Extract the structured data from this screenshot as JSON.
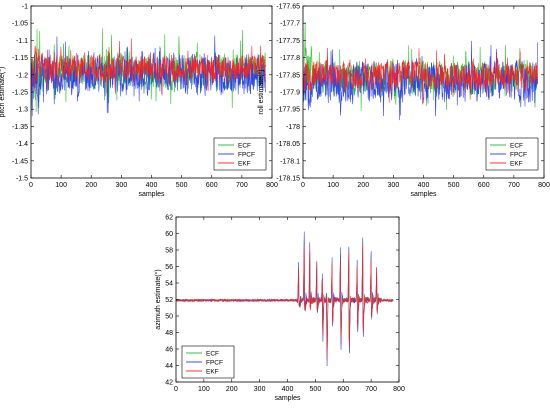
{
  "colors": {
    "ECF": "#1fbf1f",
    "FPCF": "#2b3bf0",
    "EKF": "#ff2020",
    "axis": "#000000"
  },
  "chart_data": [
    {
      "id": "pitch",
      "type": "line",
      "xlabel": "samples",
      "ylabel": "pitch estimate(°)",
      "xlim": [
        0,
        800
      ],
      "ylim": [
        -1.5,
        -1
      ],
      "xticks": [
        0,
        100,
        200,
        300,
        400,
        500,
        600,
        700,
        800
      ],
      "yticks": [
        -1.5,
        -1.45,
        -1.4,
        -1.35,
        -1.3,
        -1.25,
        -1.2,
        -1.15,
        -1.1,
        -1.05,
        -1
      ],
      "legend_position": "bottom-right",
      "n_samples": 780,
      "series": [
        {
          "name": "ECF",
          "color": "#1fbf1f",
          "mean": -1.19,
          "spread": 0.11,
          "start_spread": 0.25,
          "seed": 11
        },
        {
          "name": "FPCF",
          "color": "#2b3bf0",
          "mean": -1.2,
          "spread": 0.12,
          "start_spread": 0.18,
          "seed": 23
        },
        {
          "name": "EKF",
          "color": "#ff2020",
          "mean": -1.18,
          "spread": 0.08,
          "start_spread": 0.12,
          "seed": 37
        }
      ]
    },
    {
      "id": "roll",
      "type": "line",
      "xlabel": "samples",
      "ylabel": "roll estimate(°)",
      "xlim": [
        0,
        800
      ],
      "ylim": [
        -178.15,
        -177.65
      ],
      "xticks": [
        0,
        100,
        200,
        300,
        400,
        500,
        600,
        700,
        800
      ],
      "yticks": [
        -178.15,
        -178.1,
        -178.05,
        -178,
        -177.95,
        -177.9,
        -177.85,
        -177.8,
        -177.75,
        -177.7,
        -177.65
      ],
      "legend_position": "bottom-right",
      "n_samples": 780,
      "series": [
        {
          "name": "ECF",
          "color": "#1fbf1f",
          "mean": -177.86,
          "spread": 0.1,
          "start_spread": 0.2,
          "seed": 41
        },
        {
          "name": "FPCF",
          "color": "#2b3bf0",
          "mean": -177.87,
          "spread": 0.12,
          "start_spread": 0.15,
          "seed": 53
        },
        {
          "name": "EKF",
          "color": "#ff2020",
          "mean": -177.85,
          "spread": 0.08,
          "start_spread": 0.1,
          "seed": 67
        }
      ]
    },
    {
      "id": "azimuth",
      "type": "line",
      "xlabel": "samples",
      "ylabel": "azimuth estimate(°)",
      "xlim": [
        0,
        800
      ],
      "ylim": [
        42,
        62
      ],
      "xticks": [
        0,
        100,
        200,
        300,
        400,
        500,
        600,
        700,
        800
      ],
      "yticks": [
        42,
        44,
        46,
        48,
        50,
        52,
        54,
        56,
        58,
        60,
        62
      ],
      "legend_position": "bottom-left",
      "n_samples": 780,
      "baseline": 51.9,
      "spikes": [
        {
          "x": 440,
          "peak": 56.5,
          "trough": 51.2
        },
        {
          "x": 460,
          "peak": 60,
          "trough": 51
        },
        {
          "x": 480,
          "peak": 58.8,
          "trough": 50.8
        },
        {
          "x": 505,
          "peak": 57,
          "trough": 50.5
        },
        {
          "x": 525,
          "peak": 55,
          "trough": 47
        },
        {
          "x": 540,
          "peak": 52.5,
          "trough": 43.8
        },
        {
          "x": 560,
          "peak": 57,
          "trough": 48.5
        },
        {
          "x": 590,
          "peak": 58,
          "trough": 46
        },
        {
          "x": 620,
          "peak": 58.5,
          "trough": 45.2
        },
        {
          "x": 650,
          "peak": 56.5,
          "trough": 48
        },
        {
          "x": 670,
          "peak": 59.8,
          "trough": 47.5
        },
        {
          "x": 700,
          "peak": 57.8,
          "trough": 49.5
        },
        {
          "x": 720,
          "peak": 56,
          "trough": 50.2
        }
      ],
      "series": [
        {
          "name": "ECF",
          "color": "#1fbf1f",
          "scale": 0.9,
          "seed": 71
        },
        {
          "name": "FPCF",
          "color": "#2b3bf0",
          "scale": 1.0,
          "seed": 83
        },
        {
          "name": "EKF",
          "color": "#ff2020",
          "scale": 0.85,
          "seed": 97
        }
      ]
    }
  ]
}
